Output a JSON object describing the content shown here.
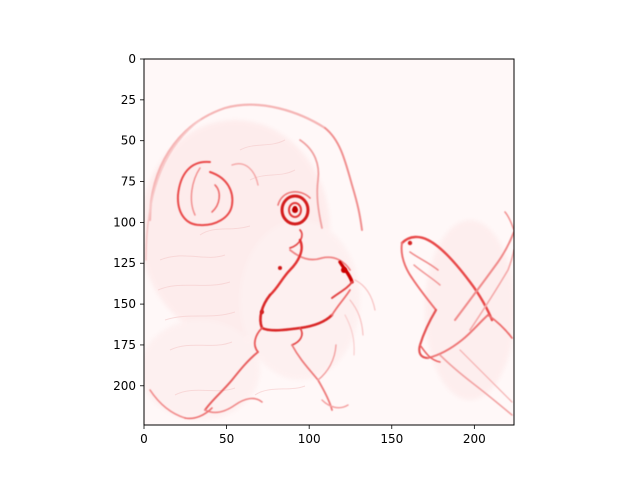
{
  "figure": {
    "type": "heatmap",
    "colormap": "Reds",
    "subject": "saliency map of a rodent (guinea pig) face with a hand-held object",
    "x_axis": {
      "range": [
        0,
        224
      ],
      "ticks": [
        0,
        50,
        100,
        150,
        200
      ],
      "tick_labels": [
        "0",
        "50",
        "100",
        "150",
        "200"
      ]
    },
    "y_axis": {
      "range": [
        0,
        224
      ],
      "inverted": true,
      "ticks": [
        0,
        25,
        50,
        75,
        100,
        125,
        150,
        175,
        200
      ],
      "tick_labels": [
        "0",
        "25",
        "50",
        "75",
        "100",
        "125",
        "150",
        "175",
        "200"
      ]
    },
    "grid": false,
    "legend": "none"
  },
  "colors": {
    "background": "#ffffff",
    "image_base": "#fff7f7",
    "edge_light": "#f9c9c9",
    "edge_medium": "#f08080",
    "edge_strong": "#e31a1c",
    "edge_peak": "#cc0000",
    "axis": "#000000"
  }
}
